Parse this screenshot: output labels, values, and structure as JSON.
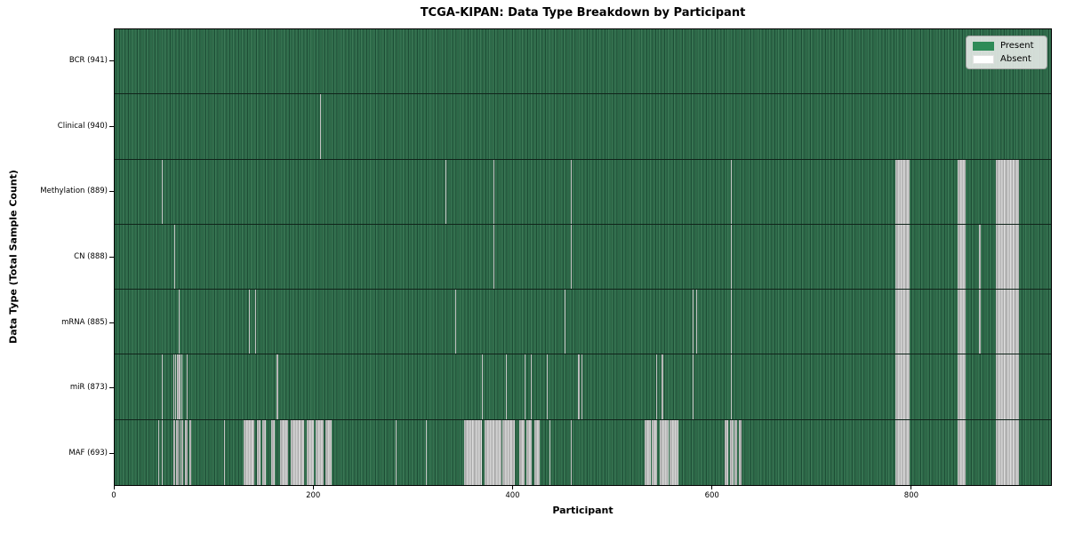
{
  "title": "TCGA-KIPAN: Data Type Breakdown by Participant",
  "colors": {
    "present": "#2e8b57",
    "present_mid": "#2d6a49",
    "present_dark": "#1e4e36",
    "present_light": "#3d7a57",
    "absent": "#ffffff",
    "absent_mid": "#c4c4c4",
    "absent_dark": "#909090",
    "absent_light": "#dedede"
  },
  "chart_data": {
    "type": "heatmap",
    "title": "TCGA-KIPAN: Data Type Breakdown by Participant",
    "xlabel": "Participant",
    "ylabel": "Data Type (Total Sample Count)",
    "x_range": [
      0,
      941
    ],
    "x_ticks": [
      0,
      200,
      400,
      600,
      800
    ],
    "grid": false,
    "legend_position": "upper-right",
    "legend": [
      {
        "label": "Present",
        "color": "#2e8b57"
      },
      {
        "label": "Absent",
        "color": "#ffffff"
      }
    ],
    "rows": [
      {
        "data_type": "BCR",
        "label": "BCR (941)",
        "present_count": 941,
        "total": 941,
        "absent_ranges": []
      },
      {
        "data_type": "Clinical",
        "label": "Clinical (940)",
        "present_count": 940,
        "total": 941,
        "absent_ranges": [
          [
            206,
            207
          ]
        ]
      },
      {
        "data_type": "Methylation",
        "label": "Methylation (889)",
        "present_count": 889,
        "total": 941,
        "absent_ranges": [
          [
            47,
            48
          ],
          [
            332,
            333
          ],
          [
            381,
            382
          ],
          [
            458,
            459
          ],
          [
            619,
            620
          ],
          [
            785,
            799
          ],
          [
            847,
            855
          ],
          [
            886,
            909
          ]
        ]
      },
      {
        "data_type": "CN",
        "label": "CN (888)",
        "present_count": 888,
        "total": 941,
        "absent_ranges": [
          [
            60,
            61
          ],
          [
            381,
            382
          ],
          [
            458,
            459
          ],
          [
            619,
            620
          ],
          [
            785,
            799
          ],
          [
            847,
            855
          ],
          [
            869,
            870
          ],
          [
            886,
            909
          ]
        ]
      },
      {
        "data_type": "mRNA",
        "label": "mRNA (885)",
        "present_count": 885,
        "total": 941,
        "absent_ranges": [
          [
            64,
            65
          ],
          [
            135,
            136
          ],
          [
            141,
            142
          ],
          [
            342,
            343
          ],
          [
            452,
            453
          ],
          [
            581,
            582
          ],
          [
            584,
            585
          ],
          [
            619,
            620
          ],
          [
            785,
            799
          ],
          [
            847,
            855
          ],
          [
            869,
            870
          ],
          [
            886,
            909
          ]
        ]
      },
      {
        "data_type": "miR",
        "label": "miR (873)",
        "present_count": 873,
        "total": 941,
        "absent_ranges": [
          [
            47,
            48
          ],
          [
            59,
            60
          ],
          [
            61,
            62
          ],
          [
            63,
            66
          ],
          [
            67,
            68
          ],
          [
            72,
            73
          ],
          [
            163,
            164
          ],
          [
            369,
            370
          ],
          [
            393,
            394
          ],
          [
            412,
            413
          ],
          [
            418,
            419
          ],
          [
            434,
            435
          ],
          [
            466,
            467
          ],
          [
            469,
            470
          ],
          [
            544,
            545
          ],
          [
            550,
            551
          ],
          [
            581,
            582
          ],
          [
            619,
            620
          ],
          [
            785,
            799
          ],
          [
            847,
            855
          ],
          [
            886,
            909
          ]
        ]
      },
      {
        "data_type": "MAF",
        "label": "MAF (693)",
        "present_count": 693,
        "total": 941,
        "absent_ranges": [
          [
            44,
            45
          ],
          [
            47,
            48
          ],
          [
            59,
            61
          ],
          [
            62,
            64
          ],
          [
            65,
            66
          ],
          [
            67,
            69
          ],
          [
            71,
            73
          ],
          [
            75,
            77
          ],
          [
            110,
            111
          ],
          [
            130,
            140
          ],
          [
            143,
            147
          ],
          [
            148,
            152
          ],
          [
            157,
            161
          ],
          [
            166,
            174
          ],
          [
            177,
            190
          ],
          [
            193,
            200
          ],
          [
            202,
            210
          ],
          [
            212,
            218
          ],
          [
            282,
            283
          ],
          [
            313,
            314
          ],
          [
            351,
            369
          ],
          [
            372,
            389
          ],
          [
            390,
            402
          ],
          [
            407,
            412
          ],
          [
            414,
            419
          ],
          [
            422,
            427
          ],
          [
            437,
            438
          ],
          [
            458,
            459
          ],
          [
            533,
            539
          ],
          [
            540,
            545
          ],
          [
            548,
            557
          ],
          [
            558,
            567
          ],
          [
            613,
            617
          ],
          [
            618,
            622
          ],
          [
            623,
            626
          ],
          [
            627,
            630
          ],
          [
            785,
            799
          ],
          [
            847,
            855
          ],
          [
            886,
            909
          ]
        ]
      }
    ]
  }
}
